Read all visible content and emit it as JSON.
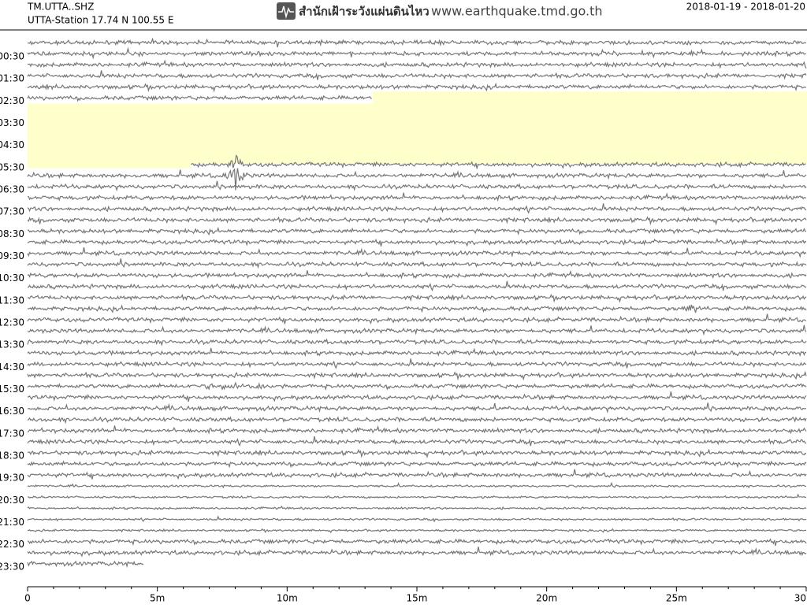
{
  "chart_data": {
    "type": "helicorder",
    "title": "TM.UTTA..SHZ",
    "subtitle": "UTTA-Station  17.74 N 100.55 E",
    "agency": "สำนักเฝ้าระวังแผ่นดินไหว",
    "website": "www.earthquake.tmd.go.th",
    "date_range": "2018-01-19 - 2018-01-20",
    "categories": [
      null,
      "00:30",
      null,
      "01:30",
      null,
      "02:30",
      null,
      "03:30",
      null,
      "04:30",
      null,
      "05:30",
      null,
      "06:30",
      null,
      "07:30",
      null,
      "08:30",
      null,
      "09:30",
      null,
      "10:30",
      null,
      "11:30",
      null,
      "12:30",
      null,
      "13:30",
      null,
      "14:30",
      null,
      "15:30",
      null,
      "16:30",
      null,
      "17:30",
      null,
      "18:30",
      null,
      "19:30",
      null,
      "20:30",
      null,
      "21:30",
      null,
      "22:30",
      null,
      "23:30"
    ],
    "xlim": [
      0,
      30
    ],
    "xticks": [
      0,
      {
        "value": 5,
        "label": "5m"
      },
      {
        "value": 10,
        "label": "10m"
      },
      {
        "value": 15,
        "label": "15m"
      },
      {
        "value": 20,
        "label": "20m"
      },
      {
        "value": 25,
        "label": "25m"
      },
      30
    ],
    "x_minor_ticks": [
      1,
      2,
      3,
      4,
      6,
      7,
      8,
      9,
      11,
      12,
      13,
      14,
      16,
      17,
      18,
      19,
      21,
      22,
      23,
      24,
      26,
      27,
      28,
      29
    ],
    "gap": {
      "from_row": 5,
      "from_x": 13.3,
      "to_row": 11,
      "to_x": 6.3
    },
    "end_x": 4.5,
    "trace_color": "#777777",
    "gap_color": "#ffffcc"
  }
}
